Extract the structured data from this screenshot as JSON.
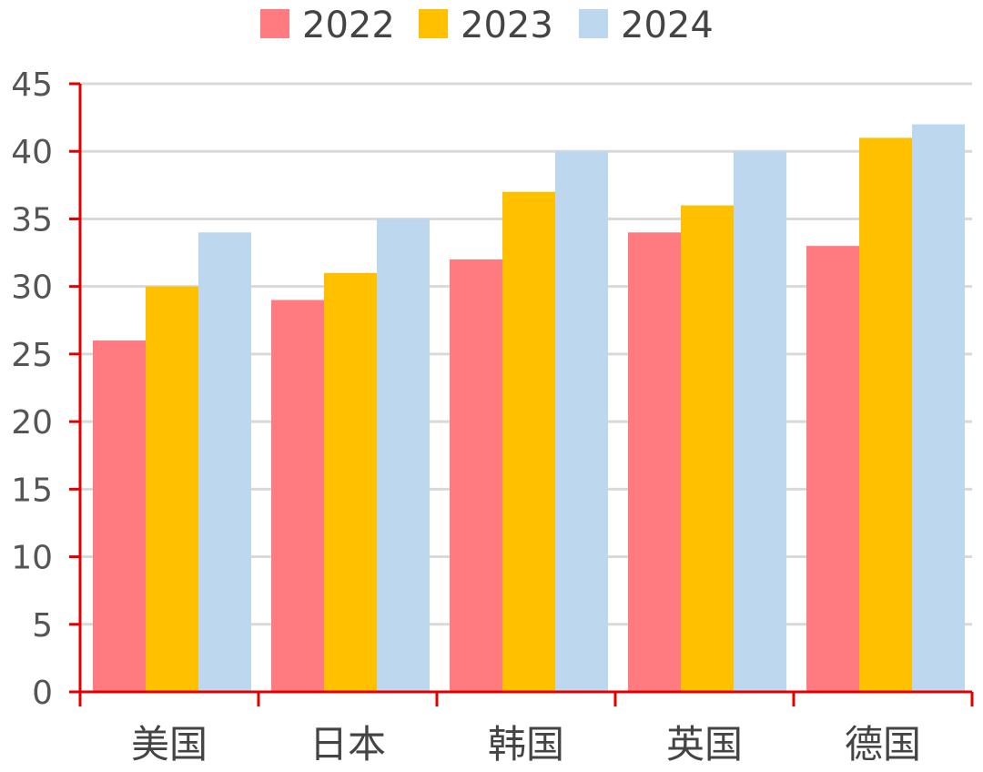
{
  "chart_data": {
    "type": "bar",
    "categories": [
      "美国",
      "日本",
      "韩国",
      "英国",
      "德国"
    ],
    "series": [
      {
        "name": "2022",
        "values": [
          26,
          29,
          32,
          34,
          33
        ],
        "color": "#FF7B7F"
      },
      {
        "name": "2023",
        "values": [
          30,
          31,
          37,
          36,
          41
        ],
        "color": "#FFC000"
      },
      {
        "name": "2024",
        "values": [
          34,
          35,
          40,
          40,
          42
        ],
        "color": "#BDD7EE"
      }
    ],
    "title": "",
    "xlabel": "",
    "ylabel": "",
    "ylim": [
      0,
      45
    ],
    "yticks": [
      0,
      5,
      10,
      15,
      20,
      25,
      30,
      35,
      40,
      45
    ],
    "grid": true,
    "legend_position": "top",
    "axis_color": "#E00000",
    "grid_color": "#D9D9D9"
  }
}
